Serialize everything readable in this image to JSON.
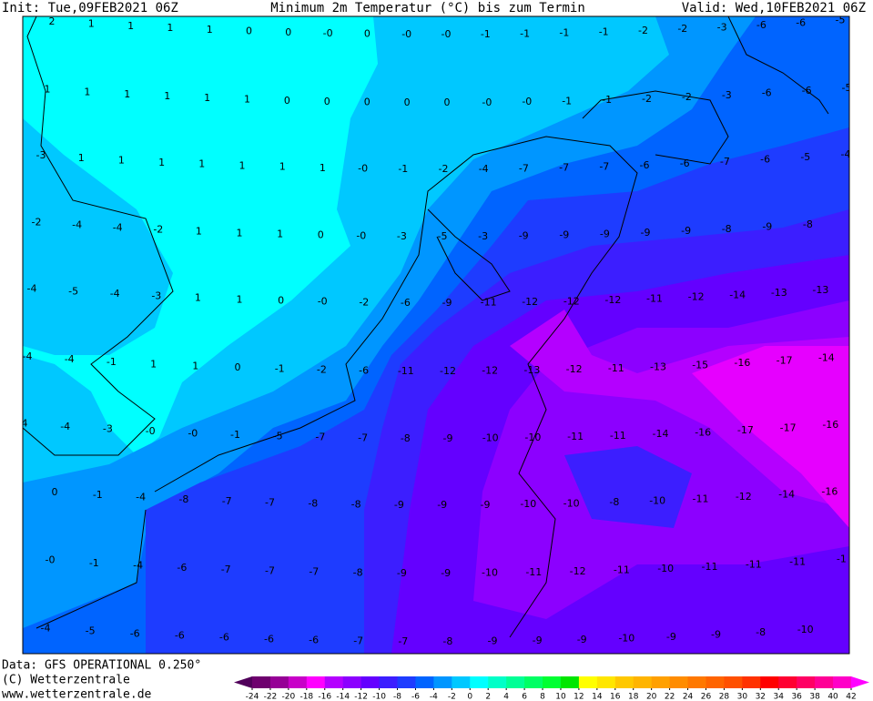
{
  "header": {
    "init": "Init: Tue,09FEB2021 06Z",
    "title": "Minimum 2m Temperatur (°C) bis zum Termin",
    "valid": "Valid: Wed,10FEB2021 06Z"
  },
  "map": {
    "labels": [
      [
        "2",
        "1",
        "1",
        "1",
        "1",
        "0",
        "0",
        "-0",
        "0",
        "-0",
        "-0",
        "-1",
        "-1",
        "-1",
        "-1",
        "-2",
        "-2",
        "-3",
        "-6",
        "-6",
        "-5"
      ],
      [
        "1",
        "1",
        "1",
        "1",
        "1",
        "1",
        "0",
        "0",
        "0",
        "0",
        "0",
        "-0",
        "-0",
        "-1",
        "-1",
        "-2",
        "-2",
        "-3",
        "-6",
        "-6",
        "-5"
      ],
      [
        "-3",
        "1",
        "1",
        "1",
        "1",
        "1",
        "1",
        "1",
        "-0",
        "-1",
        "-2",
        "-4",
        "-7",
        "-7",
        "-7",
        "-6",
        "-6",
        "-7",
        "-6",
        "-5",
        "-4"
      ],
      [
        "-2",
        "-4",
        "-4",
        "-2",
        "1",
        "1",
        "1",
        "0",
        "-0",
        "-3",
        "-5",
        "-3",
        "-9",
        "-9",
        "-9",
        "-9",
        "-9",
        "-8",
        "-9",
        "-8"
      ],
      [
        "-4",
        "-5",
        "-4",
        "-3",
        "1",
        "1",
        "0",
        "-0",
        "-2",
        "-6",
        "-9",
        "-11",
        "-12",
        "-12",
        "-12",
        "-11",
        "-12",
        "-14",
        "-13",
        "-13"
      ],
      [
        "-4",
        "-4",
        "-1",
        "1",
        "1",
        "0",
        "-1",
        "-2",
        "-6",
        "-11",
        "-12",
        "-12",
        "-13",
        "-12",
        "-11",
        "-13",
        "-15",
        "-16",
        "-17",
        "-14"
      ],
      [
        "-4",
        "-4",
        "-3",
        "-0",
        "-0",
        "-1",
        "-5",
        "-7",
        "-7",
        "-8",
        "-9",
        "-10",
        "-10",
        "-11",
        "-11",
        "-14",
        "-16",
        "-17",
        "-17",
        "-16"
      ],
      [
        "0",
        "-1",
        "-4",
        "-8",
        "-7",
        "-7",
        "-8",
        "-8",
        "-9",
        "-9",
        "-9",
        "-10",
        "-10",
        "-8",
        "-10",
        "-11",
        "-12",
        "-14",
        "-16"
      ],
      [
        "-0",
        "-1",
        "-4",
        "-6",
        "-7",
        "-7",
        "-7",
        "-8",
        "-9",
        "-9",
        "-10",
        "-11",
        "-12",
        "-11",
        "-10",
        "-11",
        "-11",
        "-11",
        "-1"
      ],
      [
        "-4",
        "-5",
        "-6",
        "-6",
        "-6",
        "-6",
        "-6",
        "-7",
        "-7",
        "-8",
        "-9",
        "-9",
        "-9",
        "-10",
        "-9",
        "-9",
        "-8",
        "-10"
      ]
    ]
  },
  "footer": {
    "data": "Data: GFS OPERATIONAL 0.250°",
    "copyright": "(C) Wetterzentrale",
    "url": "www.wetterzentrale.de"
  },
  "colorbar": {
    "ticks": [
      -24,
      -22,
      -20,
      -18,
      -16,
      -14,
      -12,
      -10,
      -8,
      -6,
      -4,
      -2,
      0,
      2,
      4,
      6,
      8,
      10,
      12,
      14,
      16,
      18,
      20,
      22,
      24,
      26,
      28,
      30,
      32,
      34,
      36,
      38,
      40,
      42
    ],
    "colors": [
      "#50005a",
      "#6e006e",
      "#960096",
      "#c800c8",
      "#ff00ff",
      "#b400ff",
      "#8c00ff",
      "#6400ff",
      "#3c1eff",
      "#1e3cff",
      "#0064ff",
      "#0096ff",
      "#00c8ff",
      "#00ffff",
      "#00ffc8",
      "#00ff96",
      "#00ff64",
      "#00ff32",
      "#00e600",
      "#ffff00",
      "#ffe600",
      "#ffc800",
      "#ffb400",
      "#ffa000",
      "#ff8c00",
      "#ff7800",
      "#ff6400",
      "#ff5000",
      "#ff3200",
      "#ff0000",
      "#ff0032",
      "#ff0064",
      "#ff0096",
      "#ff00c8",
      "#ff00ff"
    ]
  }
}
